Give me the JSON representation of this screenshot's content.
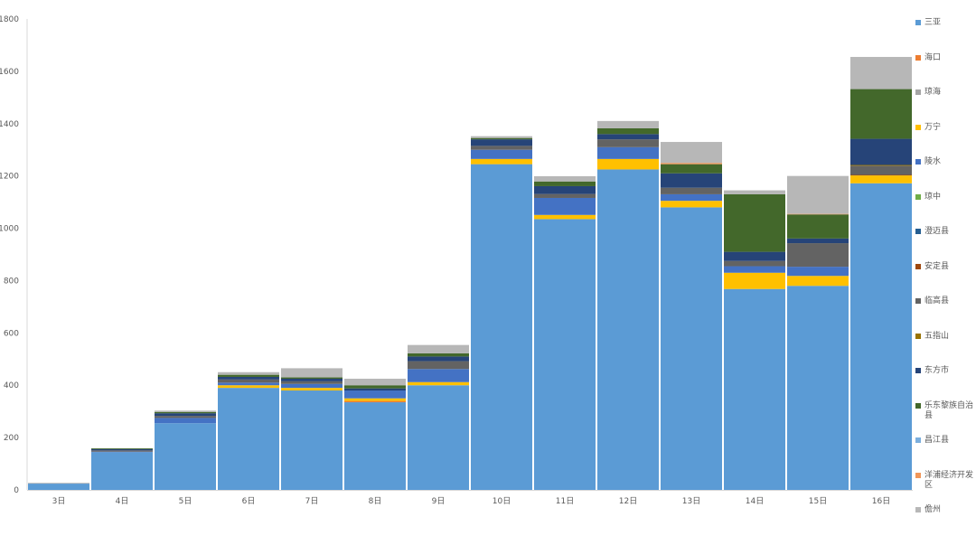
{
  "chart_data": {
    "type": "bar",
    "stacked": true,
    "categories": [
      "3日",
      "4日",
      "5日",
      "6日",
      "7日",
      "8日",
      "9日",
      "10日",
      "11日",
      "12日",
      "13日",
      "14日",
      "15日",
      "16日"
    ],
    "ylim": [
      0,
      1800
    ],
    "yticks": [
      0,
      200,
      400,
      600,
      800,
      1000,
      1200,
      1400,
      1600,
      1800
    ],
    "grid": false,
    "legend_position": "right",
    "series": [
      {
        "name": "三亚",
        "color": "#5B9BD5",
        "values": [
          24,
          144,
          255,
          390,
          380,
          335,
          400,
          1245,
          1035,
          1225,
          1080,
          768,
          780,
          1172
        ]
      },
      {
        "name": "海口",
        "color": "#ED7D31",
        "values": [
          0,
          0,
          0,
          0,
          0,
          5,
          0,
          0,
          0,
          0,
          0,
          0,
          0,
          0
        ]
      },
      {
        "name": "琼海",
        "color": "#A5A5A5",
        "values": [
          0,
          0,
          0,
          0,
          0,
          0,
          0,
          0,
          0,
          0,
          0,
          0,
          0,
          0
        ]
      },
      {
        "name": "万宁",
        "color": "#FFC000",
        "values": [
          0,
          0,
          0,
          10,
          10,
          10,
          12,
          20,
          16,
          40,
          25,
          62,
          38,
          30
        ]
      },
      {
        "name": "陵水",
        "color": "#4472C4",
        "values": [
          0,
          2,
          20,
          10,
          15,
          30,
          50,
          35,
          65,
          45,
          25,
          25,
          35,
          0
        ]
      },
      {
        "name": "琼中",
        "color": "#70AD47",
        "values": [
          0,
          0,
          0,
          0,
          0,
          0,
          0,
          0,
          0,
          0,
          0,
          0,
          0,
          0
        ]
      },
      {
        "name": "澄迈县",
        "color": "#255E91",
        "values": [
          0,
          0,
          0,
          0,
          0,
          0,
          0,
          0,
          0,
          0,
          0,
          0,
          0,
          0
        ]
      },
      {
        "name": "安定县",
        "color": "#9E480E",
        "values": [
          0,
          0,
          0,
          0,
          0,
          0,
          0,
          0,
          0,
          0,
          0,
          0,
          0,
          2
        ]
      },
      {
        "name": "临高县",
        "color": "#636363",
        "values": [
          0,
          5,
          8,
          12,
          10,
          0,
          30,
          15,
          15,
          30,
          25,
          20,
          90,
          35
        ]
      },
      {
        "name": "五指山",
        "color": "#997300",
        "values": [
          0,
          0,
          0,
          0,
          0,
          0,
          0,
          0,
          0,
          0,
          0,
          0,
          0,
          3
        ]
      },
      {
        "name": "东方市",
        "color": "#264478",
        "values": [
          0,
          5,
          10,
          10,
          10,
          8,
          18,
          25,
          30,
          20,
          55,
          35,
          18,
          100
        ]
      },
      {
        "name": "乐东黎族自治县",
        "color": "#43682B",
        "values": [
          0,
          3,
          5,
          8,
          5,
          12,
          12,
          5,
          18,
          22,
          35,
          220,
          92,
          190
        ]
      },
      {
        "name": "昌江县",
        "color": "#7CAFDD",
        "values": [
          0,
          0,
          0,
          0,
          0,
          0,
          0,
          0,
          0,
          0,
          0,
          0,
          0,
          0
        ]
      },
      {
        "name": "洋浦经济开发区",
        "color": "#F1975A",
        "values": [
          0,
          0,
          0,
          0,
          0,
          0,
          0,
          0,
          0,
          0,
          5,
          0,
          2,
          0
        ]
      },
      {
        "name": "儋州",
        "color": "#B7B7B7",
        "values": [
          3,
          0,
          5,
          10,
          35,
          25,
          32,
          7,
          20,
          28,
          80,
          15,
          145,
          123
        ]
      }
    ]
  }
}
